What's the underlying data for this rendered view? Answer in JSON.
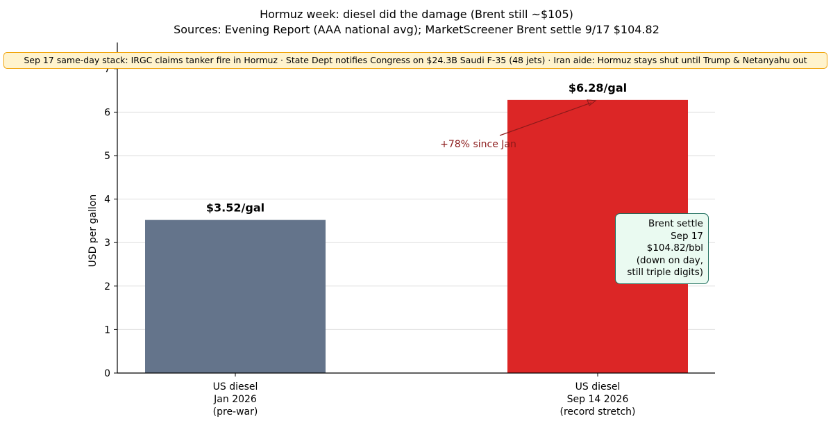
{
  "header": {
    "title": "Hormuz week: diesel did the damage (Brent still ~$105)",
    "subtitle": "Sources: Evening Report (AAA national avg); MarketScreener Brent settle 9/17 $104.82"
  },
  "banner": {
    "text": "Sep 17 same-day stack: IRGC claims tanker fire in Hormuz · State Dept notifies Congress on $24.3B Saudi F-35 (48 jets) · Iran aide: Hormuz stays shut until Trump & Netanyahu out"
  },
  "callout": {
    "lines": [
      "Brent settle",
      "Sep 17",
      "$104.82/bbl",
      "(down on day,",
      "still triple digits)"
    ]
  },
  "chart_data": {
    "type": "bar",
    "categories": [
      [
        "US diesel",
        "Jan 2026",
        "(pre-war)"
      ],
      [
        "US diesel",
        "Sep 14 2026",
        "(record stretch)"
      ]
    ],
    "values": [
      3.52,
      6.28
    ],
    "data_labels": [
      "$3.52/gal",
      "$6.28/gal"
    ],
    "colors": [
      "#64748b",
      "#dc2626"
    ],
    "ylabel": "USD per gallon",
    "ylim": [
      0,
      7.6
    ],
    "yticks": [
      0,
      1,
      2,
      3,
      4,
      5,
      6,
      7
    ],
    "grid": "horizontal",
    "annotation": {
      "text": "+78% since Jan",
      "color": "#8b1a1a",
      "arrow_target": 6.28
    }
  }
}
